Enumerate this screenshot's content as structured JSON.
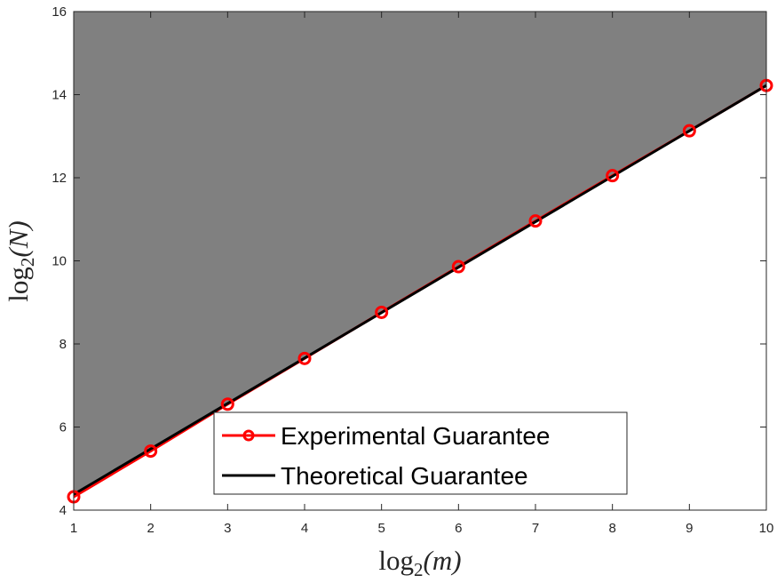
{
  "chart_data": {
    "type": "line",
    "title": "",
    "xlabel": {
      "base": "log",
      "sub": "2",
      "arg": "(m)"
    },
    "ylabel": {
      "base": "log",
      "sub": "2",
      "arg": "(N)"
    },
    "xlim": [
      1,
      10
    ],
    "ylim": [
      4,
      16
    ],
    "xticks": [
      1,
      2,
      3,
      4,
      5,
      6,
      7,
      8,
      9,
      10
    ],
    "yticks": [
      4,
      6,
      8,
      10,
      12,
      14,
      16
    ],
    "grid": false,
    "legend_position": "bottom-center",
    "shaded_region": "above theoretical guarantee",
    "series": [
      {
        "name": "Experimental Guarantee",
        "color": "#ff0000",
        "marker": "circle",
        "x": [
          1,
          2,
          3,
          4,
          5,
          6,
          7,
          8,
          9,
          10
        ],
        "y": [
          4.32,
          5.42,
          6.55,
          7.65,
          8.76,
          9.86,
          10.96,
          12.05,
          13.13,
          14.22
        ]
      },
      {
        "name": "Theoretical Guarantee",
        "color": "#000000",
        "marker": "none",
        "x": [
          1,
          10
        ],
        "y": [
          4.38,
          14.22
        ]
      }
    ],
    "colors": {
      "shade": "#808080",
      "axes": "#262626",
      "background": "#ffffff"
    }
  }
}
